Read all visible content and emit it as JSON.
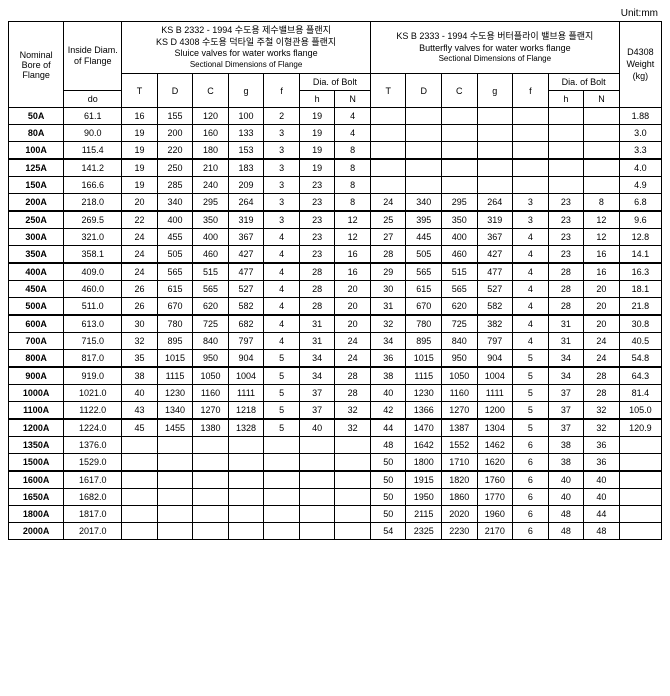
{
  "unit_label": "Unit:mm",
  "headers": {
    "nominal": "Nominal Bore of Flange",
    "inside": "Inside Diam. of Flange",
    "do": "do",
    "group1_kr1": "KS B 2332 - 1994 수도용 제수밸브용 플랜지",
    "group1_kr2": "KS D 4308 수도용 덕타일 주철 이형관용 플랜지",
    "group1_en": "Sluice valves for water works flange",
    "group1_sub": "Sectional Dimensions of Flange",
    "group2_kr": "KS B 2333 - 1994 수도용 버터플라이 밸브용 플랜지",
    "group2_en": "Butterfly valves for water works flange",
    "group2_sub": "Sectional Dimensions of Flange",
    "T": "T",
    "D": "D",
    "C": "C",
    "g": "g",
    "f": "f",
    "dia": "Dia. of Bolt",
    "h": "h",
    "N": "N",
    "weight1": "D4308",
    "weight2": "Weight",
    "weight3": "(kg)"
  },
  "rows": [
    {
      "sep": false,
      "nom": "50A",
      "do": "61.1",
      "a": [
        "16",
        "155",
        "120",
        "100",
        "2",
        "19",
        "4"
      ],
      "b": [
        "",
        "",
        "",
        "",
        "",
        "",
        ""
      ],
      "wt": "1.88"
    },
    {
      "sep": false,
      "nom": "80A",
      "do": "90.0",
      "a": [
        "19",
        "200",
        "160",
        "133",
        "3",
        "19",
        "4"
      ],
      "b": [
        "",
        "",
        "",
        "",
        "",
        "",
        ""
      ],
      "wt": "3.0"
    },
    {
      "sep": false,
      "nom": "100A",
      "do": "115.4",
      "a": [
        "19",
        "220",
        "180",
        "153",
        "3",
        "19",
        "8"
      ],
      "b": [
        "",
        "",
        "",
        "",
        "",
        "",
        ""
      ],
      "wt": "3.3"
    },
    {
      "sep": true,
      "nom": "125A",
      "do": "141.2",
      "a": [
        "19",
        "250",
        "210",
        "183",
        "3",
        "19",
        "8"
      ],
      "b": [
        "",
        "",
        "",
        "",
        "",
        "",
        ""
      ],
      "wt": "4.0"
    },
    {
      "sep": false,
      "nom": "150A",
      "do": "166.6",
      "a": [
        "19",
        "285",
        "240",
        "209",
        "3",
        "23",
        "8"
      ],
      "b": [
        "",
        "",
        "",
        "",
        "",
        "",
        ""
      ],
      "wt": "4.9"
    },
    {
      "sep": false,
      "nom": "200A",
      "do": "218.0",
      "a": [
        "20",
        "340",
        "295",
        "264",
        "3",
        "23",
        "8"
      ],
      "b": [
        "24",
        "340",
        "295",
        "264",
        "3",
        "23",
        "8"
      ],
      "wt": "6.8"
    },
    {
      "sep": true,
      "nom": "250A",
      "do": "269.5",
      "a": [
        "22",
        "400",
        "350",
        "319",
        "3",
        "23",
        "12"
      ],
      "b": [
        "25",
        "395",
        "350",
        "319",
        "3",
        "23",
        "12"
      ],
      "wt": "9.6"
    },
    {
      "sep": false,
      "nom": "300A",
      "do": "321.0",
      "a": [
        "24",
        "455",
        "400",
        "367",
        "4",
        "23",
        "12"
      ],
      "b": [
        "27",
        "445",
        "400",
        "367",
        "4",
        "23",
        "12"
      ],
      "wt": "12.8"
    },
    {
      "sep": false,
      "nom": "350A",
      "do": "358.1",
      "a": [
        "24",
        "505",
        "460",
        "427",
        "4",
        "23",
        "16"
      ],
      "b": [
        "28",
        "505",
        "460",
        "427",
        "4",
        "23",
        "16"
      ],
      "wt": "14.1"
    },
    {
      "sep": true,
      "nom": "400A",
      "do": "409.0",
      "a": [
        "24",
        "565",
        "515",
        "477",
        "4",
        "28",
        "16"
      ],
      "b": [
        "29",
        "565",
        "515",
        "477",
        "4",
        "28",
        "16"
      ],
      "wt": "16.3"
    },
    {
      "sep": false,
      "nom": "450A",
      "do": "460.0",
      "a": [
        "26",
        "615",
        "565",
        "527",
        "4",
        "28",
        "20"
      ],
      "b": [
        "30",
        "615",
        "565",
        "527",
        "4",
        "28",
        "20"
      ],
      "wt": "18.1"
    },
    {
      "sep": false,
      "nom": "500A",
      "do": "511.0",
      "a": [
        "26",
        "670",
        "620",
        "582",
        "4",
        "28",
        "20"
      ],
      "b": [
        "31",
        "670",
        "620",
        "582",
        "4",
        "28",
        "20"
      ],
      "wt": "21.8"
    },
    {
      "sep": true,
      "nom": "600A",
      "do": "613.0",
      "a": [
        "30",
        "780",
        "725",
        "682",
        "4",
        "31",
        "20"
      ],
      "b": [
        "32",
        "780",
        "725",
        "382",
        "4",
        "31",
        "20"
      ],
      "wt": "30.8"
    },
    {
      "sep": false,
      "nom": "700A",
      "do": "715.0",
      "a": [
        "32",
        "895",
        "840",
        "797",
        "4",
        "31",
        "24"
      ],
      "b": [
        "34",
        "895",
        "840",
        "797",
        "4",
        "31",
        "24"
      ],
      "wt": "40.5"
    },
    {
      "sep": false,
      "nom": "800A",
      "do": "817.0",
      "a": [
        "35",
        "1015",
        "950",
        "904",
        "5",
        "34",
        "24"
      ],
      "b": [
        "36",
        "1015",
        "950",
        "904",
        "5",
        "34",
        "24"
      ],
      "wt": "54.8"
    },
    {
      "sep": true,
      "nom": "900A",
      "do": "919.0",
      "a": [
        "38",
        "1115",
        "1050",
        "1004",
        "5",
        "34",
        "28"
      ],
      "b": [
        "38",
        "1115",
        "1050",
        "1004",
        "5",
        "34",
        "28"
      ],
      "wt": "64.3"
    },
    {
      "sep": false,
      "nom": "1000A",
      "do": "1021.0",
      "a": [
        "40",
        "1230",
        "1160",
        "1111",
        "5",
        "37",
        "28"
      ],
      "b": [
        "40",
        "1230",
        "1160",
        "1111",
        "5",
        "37",
        "28"
      ],
      "wt": "81.4"
    },
    {
      "sep": false,
      "nom": "1100A",
      "do": "1122.0",
      "a": [
        "43",
        "1340",
        "1270",
        "1218",
        "5",
        "37",
        "32"
      ],
      "b": [
        "42",
        "1366",
        "1270",
        "1200",
        "5",
        "37",
        "32"
      ],
      "wt": "105.0"
    },
    {
      "sep": true,
      "nom": "1200A",
      "do": "1224.0",
      "a": [
        "45",
        "1455",
        "1380",
        "1328",
        "5",
        "40",
        "32"
      ],
      "b": [
        "44",
        "1470",
        "1387",
        "1304",
        "5",
        "37",
        "32"
      ],
      "wt": "120.9"
    },
    {
      "sep": false,
      "nom": "1350A",
      "do": "1376.0",
      "a": [
        "",
        "",
        "",
        "",
        "",
        "",
        ""
      ],
      "b": [
        "48",
        "1642",
        "1552",
        "1462",
        "6",
        "38",
        "36"
      ],
      "wt": ""
    },
    {
      "sep": false,
      "nom": "1500A",
      "do": "1529.0",
      "a": [
        "",
        "",
        "",
        "",
        "",
        "",
        ""
      ],
      "b": [
        "50",
        "1800",
        "1710",
        "1620",
        "6",
        "38",
        "36"
      ],
      "wt": ""
    },
    {
      "sep": true,
      "nom": "1600A",
      "do": "1617.0",
      "a": [
        "",
        "",
        "",
        "",
        "",
        "",
        ""
      ],
      "b": [
        "50",
        "1915",
        "1820",
        "1760",
        "6",
        "40",
        "40"
      ],
      "wt": ""
    },
    {
      "sep": false,
      "nom": "1650A",
      "do": "1682.0",
      "a": [
        "",
        "",
        "",
        "",
        "",
        "",
        ""
      ],
      "b": [
        "50",
        "1950",
        "1860",
        "1770",
        "6",
        "40",
        "40"
      ],
      "wt": ""
    },
    {
      "sep": false,
      "nom": "1800A",
      "do": "1817.0",
      "a": [
        "",
        "",
        "",
        "",
        "",
        "",
        ""
      ],
      "b": [
        "50",
        "2115",
        "2020",
        "1960",
        "6",
        "48",
        "44"
      ],
      "wt": ""
    },
    {
      "sep": false,
      "nom": "2000A",
      "do": "2017.0",
      "a": [
        "",
        "",
        "",
        "",
        "",
        "",
        ""
      ],
      "b": [
        "54",
        "2325",
        "2230",
        "2170",
        "6",
        "48",
        "48"
      ],
      "wt": ""
    }
  ]
}
